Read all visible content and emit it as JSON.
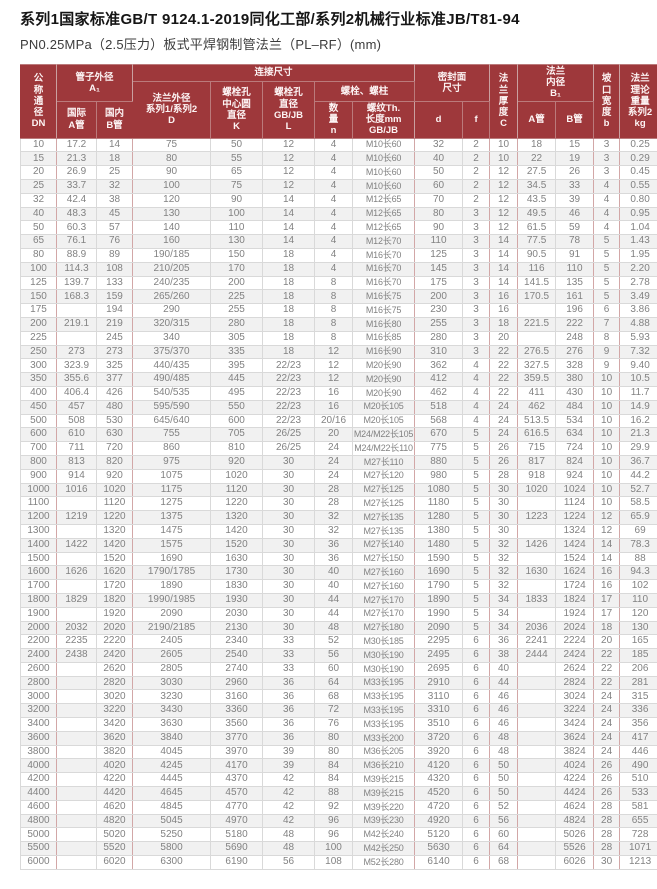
{
  "report": {
    "title": "系列1国家标准GB/T 9124.1-2019同化工部/系列2机械行业标准JB/T81-94",
    "subtitle": "PN0.25MPa（2.5压力）板式平焊钢制管法兰（PL–RF）(mm)"
  },
  "colors": {
    "header_bg": "#9e383b",
    "header_text": "#fdf4f4",
    "row_alt_bg": "#f1f1f1",
    "cell_text": "#828282",
    "grid_line": "#d9d9d9",
    "group_line": "#d2a7a7"
  },
  "header": {
    "dn": "公\n称\n通\n径\nDN",
    "pipe_od": "管子外径\nA₁",
    "pipe_od_intl": "国际\nA管",
    "pipe_od_dom": "国内\nB管",
    "connection": "连接尺寸",
    "flange_od": "法兰外径\n系列1/系列2\nD",
    "bolt_circle": "螺栓孔\n中心圆\n直径\nK",
    "bolt_hole": "螺栓孔\n直径\nGB/JB\nL",
    "bolts_group": "螺栓、螺柱",
    "bolt_qty": "数\n量\nn",
    "bolt_thread": "螺纹Th.\n长度mm\nGB/JB",
    "seal_face": "密封面\n尺寸",
    "seal_d": "d",
    "seal_f": "f",
    "thickness": "法\n兰\n厚\n度\nC",
    "bore": "法兰\n内径\nB₁",
    "bore_a": "A管",
    "bore_b": "B管",
    "bevel": "坡\n口\n宽\n度\nb",
    "weight": "法兰\n理论\n重量\n系列2\nkg"
  },
  "columns": [
    {
      "key": "dn"
    },
    {
      "key": "pipe-od-a"
    },
    {
      "key": "pipe-od-b"
    },
    {
      "key": "flange-od-d"
    },
    {
      "key": "bolt-circle-k"
    },
    {
      "key": "bolt-hole-l"
    },
    {
      "key": "qty-n"
    },
    {
      "key": "thread-length"
    },
    {
      "key": "seal-d"
    },
    {
      "key": "seal-f"
    },
    {
      "key": "thickness-c"
    },
    {
      "key": "bore-a"
    },
    {
      "key": "bore-b"
    },
    {
      "key": "bevel-b"
    },
    {
      "key": "weight-kg"
    }
  ],
  "rows": [
    [
      "10",
      "17.2",
      "14",
      "75",
      "50",
      "12",
      "4",
      "M10长60",
      "32",
      "2",
      "10",
      "18",
      "15",
      "3",
      "0.25"
    ],
    [
      "15",
      "21.3",
      "18",
      "80",
      "55",
      "12",
      "4",
      "M10长60",
      "40",
      "2",
      "10",
      "22",
      "19",
      "3",
      "0.29"
    ],
    [
      "20",
      "26.9",
      "25",
      "90",
      "65",
      "12",
      "4",
      "M10长60",
      "50",
      "2",
      "12",
      "27.5",
      "26",
      "3",
      "0.45"
    ],
    [
      "25",
      "33.7",
      "32",
      "100",
      "75",
      "12",
      "4",
      "M10长60",
      "60",
      "2",
      "12",
      "34.5",
      "33",
      "4",
      "0.55"
    ],
    [
      "32",
      "42.4",
      "38",
      "120",
      "90",
      "14",
      "4",
      "M12长65",
      "70",
      "2",
      "12",
      "43.5",
      "39",
      "4",
      "0.80"
    ],
    [
      "40",
      "48.3",
      "45",
      "130",
      "100",
      "14",
      "4",
      "M12长65",
      "80",
      "3",
      "12",
      "49.5",
      "46",
      "4",
      "0.95"
    ],
    [
      "50",
      "60.3",
      "57",
      "140",
      "110",
      "14",
      "4",
      "M12长65",
      "90",
      "3",
      "12",
      "61.5",
      "59",
      "4",
      "1.04"
    ],
    [
      "65",
      "76.1",
      "76",
      "160",
      "130",
      "14",
      "4",
      "M12长70",
      "110",
      "3",
      "14",
      "77.5",
      "78",
      "5",
      "1.43"
    ],
    [
      "80",
      "88.9",
      "89",
      "190/185",
      "150",
      "18",
      "4",
      "M16长70",
      "125",
      "3",
      "14",
      "90.5",
      "91",
      "5",
      "1.95"
    ],
    [
      "100",
      "114.3",
      "108",
      "210/205",
      "170",
      "18",
      "4",
      "M16长70",
      "145",
      "3",
      "14",
      "116",
      "110",
      "5",
      "2.20"
    ],
    [
      "125",
      "139.7",
      "133",
      "240/235",
      "200",
      "18",
      "8",
      "M16长70",
      "175",
      "3",
      "14",
      "141.5",
      "135",
      "5",
      "2.78"
    ],
    [
      "150",
      "168.3",
      "159",
      "265/260",
      "225",
      "18",
      "8",
      "M16长75",
      "200",
      "3",
      "16",
      "170.5",
      "161",
      "5",
      "3.49"
    ],
    [
      "175",
      "",
      "194",
      "290",
      "255",
      "18",
      "8",
      "M16长75",
      "230",
      "3",
      "16",
      "",
      "196",
      "6",
      "3.86"
    ],
    [
      "200",
      "219.1",
      "219",
      "320/315",
      "280",
      "18",
      "8",
      "M16长80",
      "255",
      "3",
      "18",
      "221.5",
      "222",
      "7",
      "4.88"
    ],
    [
      "225",
      "",
      "245",
      "340",
      "305",
      "18",
      "8",
      "M16长85",
      "280",
      "3",
      "20",
      "",
      "248",
      "8",
      "5.93"
    ],
    [
      "250",
      "273",
      "273",
      "375/370",
      "335",
      "18",
      "12",
      "M16长90",
      "310",
      "3",
      "22",
      "276.5",
      "276",
      "9",
      "7.32"
    ],
    [
      "300",
      "323.9",
      "325",
      "440/435",
      "395",
      "22/23",
      "12",
      "M20长90",
      "362",
      "4",
      "22",
      "327.5",
      "328",
      "9",
      "9.40"
    ],
    [
      "350",
      "355.6",
      "377",
      "490/485",
      "445",
      "22/23",
      "12",
      "M20长90",
      "412",
      "4",
      "22",
      "359.5",
      "380",
      "10",
      "10.5"
    ],
    [
      "400",
      "406.4",
      "426",
      "540/535",
      "495",
      "22/23",
      "16",
      "M20长90",
      "462",
      "4",
      "22",
      "411",
      "430",
      "10",
      "11.7"
    ],
    [
      "450",
      "457",
      "480",
      "595/590",
      "550",
      "22/23",
      "16",
      "M20长105",
      "518",
      "4",
      "24",
      "462",
      "484",
      "10",
      "14.9"
    ],
    [
      "500",
      "508",
      "530",
      "645/640",
      "600",
      "22/23",
      "20/16",
      "M20长105",
      "568",
      "4",
      "24",
      "513.5",
      "534",
      "10",
      "16.2"
    ],
    [
      "600",
      "610",
      "630",
      "755",
      "705",
      "26/25",
      "20",
      "M24/M22长105",
      "670",
      "5",
      "24",
      "616.5",
      "634",
      "10",
      "21.3"
    ],
    [
      "700",
      "711",
      "720",
      "860",
      "810",
      "26/25",
      "24",
      "M24/M22长110",
      "775",
      "5",
      "26",
      "715",
      "724",
      "10",
      "29.9"
    ],
    [
      "800",
      "813",
      "820",
      "975",
      "920",
      "30",
      "24",
      "M27长110",
      "880",
      "5",
      "26",
      "817",
      "824",
      "10",
      "36.7"
    ],
    [
      "900",
      "914",
      "920",
      "1075",
      "1020",
      "30",
      "24",
      "M27长120",
      "980",
      "5",
      "28",
      "918",
      "924",
      "10",
      "44.2"
    ],
    [
      "1000",
      "1016",
      "1020",
      "1175",
      "1120",
      "30",
      "28",
      "M27长125",
      "1080",
      "5",
      "30",
      "1020",
      "1024",
      "10",
      "52.7"
    ],
    [
      "1100",
      "",
      "1120",
      "1275",
      "1220",
      "30",
      "28",
      "M27长125",
      "1180",
      "5",
      "30",
      "",
      "1124",
      "10",
      "58.5"
    ],
    [
      "1200",
      "1219",
      "1220",
      "1375",
      "1320",
      "30",
      "32",
      "M27长135",
      "1280",
      "5",
      "30",
      "1223",
      "1224",
      "12",
      "65.9"
    ],
    [
      "1300",
      "",
      "1320",
      "1475",
      "1420",
      "30",
      "32",
      "M27长135",
      "1380",
      "5",
      "30",
      "",
      "1324",
      "12",
      "69"
    ],
    [
      "1400",
      "1422",
      "1420",
      "1575",
      "1520",
      "30",
      "36",
      "M27长140",
      "1480",
      "5",
      "32",
      "1426",
      "1424",
      "14",
      "78.3"
    ],
    [
      "1500",
      "",
      "1520",
      "1690",
      "1630",
      "30",
      "36",
      "M27长150",
      "1590",
      "5",
      "32",
      "",
      "1524",
      "14",
      "88"
    ],
    [
      "1600",
      "1626",
      "1620",
      "1790/1785",
      "1730",
      "30",
      "40",
      "M27长160",
      "1690",
      "5",
      "32",
      "1630",
      "1624",
      "16",
      "94.3"
    ],
    [
      "1700",
      "",
      "1720",
      "1890",
      "1830",
      "30",
      "40",
      "M27长160",
      "1790",
      "5",
      "32",
      "",
      "1724",
      "16",
      "102"
    ],
    [
      "1800",
      "1829",
      "1820",
      "1990/1985",
      "1930",
      "30",
      "44",
      "M27长170",
      "1890",
      "5",
      "34",
      "1833",
      "1824",
      "17",
      "110"
    ],
    [
      "1900",
      "",
      "1920",
      "2090",
      "2030",
      "30",
      "44",
      "M27长170",
      "1990",
      "5",
      "34",
      "",
      "1924",
      "17",
      "120"
    ],
    [
      "2000",
      "2032",
      "2020",
      "2190/2185",
      "2130",
      "30",
      "48",
      "M27长180",
      "2090",
      "5",
      "34",
      "2036",
      "2024",
      "18",
      "130"
    ],
    [
      "2200",
      "2235",
      "2220",
      "2405",
      "2340",
      "33",
      "52",
      "M30长185",
      "2295",
      "6",
      "36",
      "2241",
      "2224",
      "20",
      "165"
    ],
    [
      "2400",
      "2438",
      "2420",
      "2605",
      "2540",
      "33",
      "56",
      "M30长190",
      "2495",
      "6",
      "38",
      "2444",
      "2424",
      "22",
      "185"
    ],
    [
      "2600",
      "",
      "2620",
      "2805",
      "2740",
      "33",
      "60",
      "M30长190",
      "2695",
      "6",
      "40",
      "",
      "2624",
      "22",
      "206"
    ],
    [
      "2800",
      "",
      "2820",
      "3030",
      "2960",
      "36",
      "64",
      "M33长195",
      "2910",
      "6",
      "44",
      "",
      "2824",
      "22",
      "281"
    ],
    [
      "3000",
      "",
      "3020",
      "3230",
      "3160",
      "36",
      "68",
      "M33长195",
      "3110",
      "6",
      "46",
      "",
      "3024",
      "24",
      "315"
    ],
    [
      "3200",
      "",
      "3220",
      "3430",
      "3360",
      "36",
      "72",
      "M33长195",
      "3310",
      "6",
      "46",
      "",
      "3224",
      "24",
      "336"
    ],
    [
      "3400",
      "",
      "3420",
      "3630",
      "3560",
      "36",
      "76",
      "M33长195",
      "3510",
      "6",
      "46",
      "",
      "3424",
      "24",
      "356"
    ],
    [
      "3600",
      "",
      "3620",
      "3840",
      "3770",
      "36",
      "80",
      "M33长200",
      "3720",
      "6",
      "48",
      "",
      "3624",
      "24",
      "417"
    ],
    [
      "3800",
      "",
      "3820",
      "4045",
      "3970",
      "39",
      "80",
      "M36长205",
      "3920",
      "6",
      "48",
      "",
      "3824",
      "24",
      "446"
    ],
    [
      "4000",
      "",
      "4020",
      "4245",
      "4170",
      "39",
      "84",
      "M36长210",
      "4120",
      "6",
      "50",
      "",
      "4024",
      "26",
      "490"
    ],
    [
      "4200",
      "",
      "4220",
      "4445",
      "4370",
      "42",
      "84",
      "M39长215",
      "4320",
      "6",
      "50",
      "",
      "4224",
      "26",
      "510"
    ],
    [
      "4400",
      "",
      "4420",
      "4645",
      "4570",
      "42",
      "88",
      "M39长215",
      "4520",
      "6",
      "50",
      "",
      "4424",
      "26",
      "533"
    ],
    [
      "4600",
      "",
      "4620",
      "4845",
      "4770",
      "42",
      "92",
      "M39长220",
      "4720",
      "6",
      "52",
      "",
      "4624",
      "28",
      "581"
    ],
    [
      "4800",
      "",
      "4820",
      "5045",
      "4970",
      "42",
      "96",
      "M39长230",
      "4920",
      "6",
      "56",
      "",
      "4824",
      "28",
      "655"
    ],
    [
      "5000",
      "",
      "5020",
      "5250",
      "5180",
      "48",
      "96",
      "M42长240",
      "5120",
      "6",
      "60",
      "",
      "5026",
      "28",
      "728"
    ],
    [
      "5500",
      "",
      "5520",
      "5800",
      "5690",
      "48",
      "100",
      "M42长250",
      "5630",
      "6",
      "64",
      "",
      "5526",
      "28",
      "1071"
    ],
    [
      "6000",
      "",
      "6020",
      "6300",
      "6190",
      "56",
      "108",
      "M52长280",
      "6140",
      "6",
      "68",
      "",
      "6026",
      "30",
      "1213"
    ]
  ]
}
